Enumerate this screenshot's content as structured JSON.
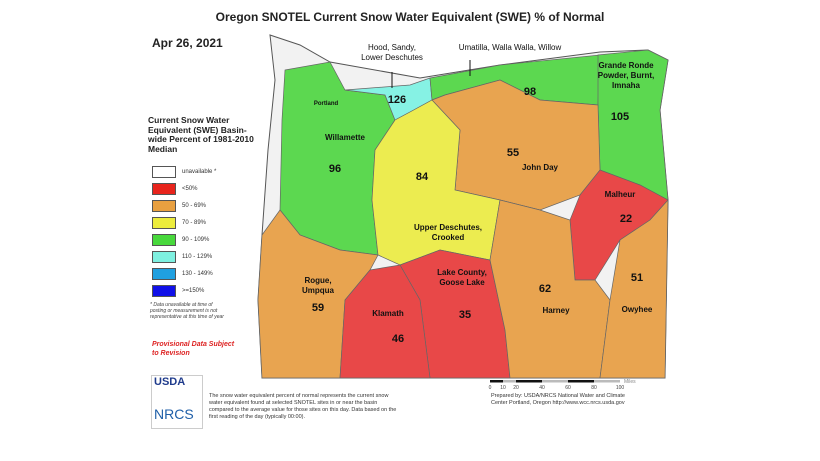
{
  "title": "Oregon SNOTEL Current Snow Water Equivalent (SWE) % of Normal",
  "date": "Apr 26, 2021",
  "legend": {
    "title": "Current Snow Water Equivalent (SWE) Basin-wide Percent of 1981-2010 Median",
    "items": [
      {
        "label": "unavailable *",
        "color": "#ffffff"
      },
      {
        "label": "<50%",
        "color": "#e8241c"
      },
      {
        "label": "50 - 69%",
        "color": "#e8a040"
      },
      {
        "label": "70 - 89%",
        "color": "#ecec3c"
      },
      {
        "label": "90 - 109%",
        "color": "#48d83c"
      },
      {
        "label": "110 - 129%",
        "color": "#7ef0e0"
      },
      {
        "label": "130 - 149%",
        "color": "#20a0e0"
      },
      {
        "label": ">=150%",
        "color": "#1010e8"
      }
    ]
  },
  "note": "* Data unavailable at time of posting or measurement is not representative at this time of year",
  "provisional": "Provisional Data Subject to Revision",
  "basins": [
    {
      "name": "Willamette",
      "value": "96",
      "color": "#5cd850"
    },
    {
      "name": "Hood, Sandy, Lower Deschutes",
      "value": "126",
      "color": "#86f2e4"
    },
    {
      "name": "Umatilla, Walla Walla, Willow",
      "value": "98",
      "color": "#5cd850"
    },
    {
      "name": "Grande Ronde Powder, Burnt, Imnaha",
      "value": "105",
      "color": "#5cd850"
    },
    {
      "name": "John Day",
      "value": "55",
      "color": "#e8a450"
    },
    {
      "name": "Upper Deschutes, Crooked",
      "value": "84",
      "color": "#ecec50"
    },
    {
      "name": "Malheur",
      "value": "22",
      "color": "#e84848"
    },
    {
      "name": "Rogue, Umpqua",
      "value": "59",
      "color": "#e8a450"
    },
    {
      "name": "Lake County, Goose Lake",
      "value": "35",
      "color": "#e84848"
    },
    {
      "name": "Klamath",
      "value": "46",
      "color": "#e84848"
    },
    {
      "name": "Harney",
      "value": "62",
      "color": "#e8a450"
    },
    {
      "name": "Owyhee",
      "value": "51",
      "color": "#e8a450"
    }
  ],
  "city": "Portland",
  "scale": {
    "ticks": [
      "0",
      "10",
      "20",
      "40",
      "60",
      "80",
      "100"
    ],
    "unit": "Miles"
  },
  "description": "The snow water equivalent percent of normal represents the current snow water equivalent found at selected SNOTEL sites in or near the basin compared to the average value for those sites on this day. Data based on the first reading of the day (typically 00:00).",
  "prepared": "Prepared by: USDA/NRCS National Water and Climate Center Portland, Oregon http://www.wcc.nrcs.usda.gov",
  "logo": {
    "usda": "USDA",
    "nrcs": "NRCS"
  }
}
